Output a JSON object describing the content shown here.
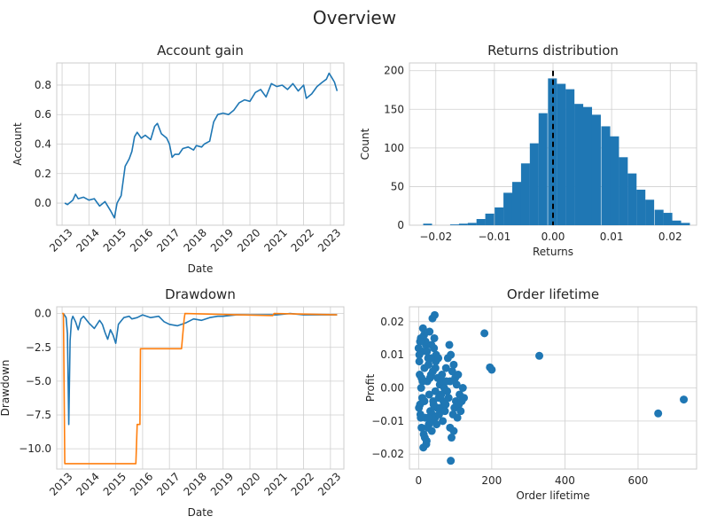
{
  "figure": {
    "title": "Overview"
  },
  "colors": {
    "blue": "#1f77b4",
    "orange": "#ff7f0e",
    "black": "#000000"
  },
  "chart_data": [
    {
      "type": "line",
      "title": "Account gain",
      "xlabel": "Date",
      "ylabel": "Account",
      "xlim": [
        2012.8,
        2023.5
      ],
      "ylim": [
        -0.15,
        0.95
      ],
      "xticks": [
        "2013",
        "2014",
        "2015",
        "2016",
        "2017",
        "2018",
        "2019",
        "2020",
        "2021",
        "2022",
        "2023"
      ],
      "yticks": [
        "0.0",
        "0.2",
        "0.4",
        "0.6",
        "0.8"
      ],
      "grid": true,
      "series": [
        {
          "x": [
            2013.1,
            2013.2,
            2013.4,
            2013.5,
            2013.6,
            2013.8,
            2014.0,
            2014.2,
            2014.4,
            2014.6,
            2014.8,
            2014.95,
            2015.05,
            2015.2,
            2015.35,
            2015.5,
            2015.6,
            2015.7,
            2015.8,
            2015.95,
            2016.1,
            2016.3,
            2016.45,
            2016.55,
            2016.7,
            2016.9,
            2017.0,
            2017.1,
            2017.2,
            2017.35,
            2017.5,
            2017.7,
            2017.9,
            2018.0,
            2018.2,
            2018.3,
            2018.5,
            2018.65,
            2018.8,
            2019.0,
            2019.2,
            2019.4,
            2019.6,
            2019.8,
            2020.0,
            2020.2,
            2020.4,
            2020.6,
            2020.8,
            2021.0,
            2021.2,
            2021.4,
            2021.6,
            2021.8,
            2022.0,
            2022.1,
            2022.3,
            2022.5,
            2022.7,
            2022.85,
            2022.95,
            2023.05,
            2023.15,
            2023.25
          ],
          "y": [
            0.0,
            -0.01,
            0.02,
            0.06,
            0.03,
            0.04,
            0.02,
            0.03,
            -0.02,
            0.01,
            -0.05,
            -0.1,
            0.0,
            0.05,
            0.25,
            0.3,
            0.35,
            0.45,
            0.48,
            0.44,
            0.46,
            0.43,
            0.52,
            0.54,
            0.47,
            0.44,
            0.4,
            0.31,
            0.33,
            0.33,
            0.37,
            0.38,
            0.36,
            0.39,
            0.38,
            0.4,
            0.42,
            0.55,
            0.6,
            0.61,
            0.6,
            0.63,
            0.68,
            0.7,
            0.69,
            0.75,
            0.77,
            0.72,
            0.81,
            0.79,
            0.8,
            0.77,
            0.81,
            0.76,
            0.8,
            0.71,
            0.74,
            0.79,
            0.82,
            0.84,
            0.88,
            0.85,
            0.82,
            0.76
          ]
        }
      ]
    },
    {
      "type": "bar",
      "title": "Returns distribution",
      "xlabel": "Returns",
      "ylabel": "Count",
      "xlim": [
        -0.0245,
        0.0245
      ],
      "ylim": [
        0,
        210
      ],
      "xticks": [
        "−0.02",
        "−0.01",
        "0.00",
        "0.01",
        "0.02"
      ],
      "yticks": [
        "0",
        "50",
        "100",
        "150",
        "200"
      ],
      "grid": true,
      "bin_width": 0.001515,
      "bins": [
        -0.0229,
        -0.0214,
        -0.0199,
        -0.0183,
        -0.0168,
        -0.0153,
        -0.0138,
        -0.0123,
        -0.0108,
        -0.0092,
        -0.0077,
        -0.0062,
        -0.0047,
        -0.0032,
        -0.0017,
        -0.0001,
        0.0014,
        0.0029,
        0.0044,
        0.0059,
        0.0074,
        0.009,
        0.0105,
        0.012,
        0.0135,
        0.015,
        0.0165,
        0.0181,
        0.0196,
        0.0211,
        0.0226
      ],
      "values": [
        0,
        2,
        0,
        0,
        1,
        2,
        3,
        8,
        15,
        23,
        42,
        56,
        80,
        106,
        145,
        190,
        183,
        176,
        157,
        153,
        143,
        128,
        115,
        88,
        67,
        46,
        33,
        20,
        16,
        6,
        3
      ],
      "mean_line": {
        "x": 0.0,
        "style": "dashed"
      }
    },
    {
      "type": "line",
      "title": "Drawdown",
      "xlabel": "Date",
      "ylabel": "Drawdown",
      "xlim": [
        2012.8,
        2023.5
      ],
      "ylim": [
        -11.5,
        0.5
      ],
      "xticks": [
        "2013",
        "2014",
        "2015",
        "2016",
        "2017",
        "2018",
        "2019",
        "2020",
        "2021",
        "2022",
        "2023"
      ],
      "yticks": [
        "0.0",
        "−2.5",
        "−5.0",
        "−7.5",
        "−10.0"
      ],
      "grid": true,
      "series": [
        {
          "color": "blue",
          "x": [
            2013.05,
            2013.15,
            2013.2,
            2013.25,
            2013.3,
            2013.35,
            2013.4,
            2013.5,
            2013.6,
            2013.7,
            2013.8,
            2014.0,
            2014.2,
            2014.4,
            2014.5,
            2014.6,
            2014.7,
            2014.8,
            2014.9,
            2015.0,
            2015.1,
            2015.3,
            2015.5,
            2015.6,
            2015.8,
            2016.0,
            2016.3,
            2016.6,
            2016.8,
            2017.0,
            2017.3,
            2017.6,
            2017.9,
            2018.2,
            2018.5,
            2018.8,
            2019.0,
            2019.5,
            2020.0,
            2020.5,
            2021.0,
            2021.5,
            2022.0,
            2022.5,
            2023.0,
            2023.25
          ],
          "y": [
            0.0,
            -0.3,
            -1.5,
            -8.2,
            -2.0,
            -0.5,
            -0.2,
            -0.6,
            -1.2,
            -0.4,
            -0.2,
            -0.7,
            -1.1,
            -0.5,
            -0.8,
            -1.4,
            -1.9,
            -1.2,
            -1.6,
            -2.2,
            -0.8,
            -0.3,
            -0.2,
            -0.4,
            -0.3,
            -0.1,
            -0.3,
            -0.2,
            -0.6,
            -0.8,
            -0.9,
            -0.7,
            -0.4,
            -0.5,
            -0.3,
            -0.2,
            -0.2,
            -0.1,
            -0.1,
            -0.1,
            -0.1,
            0.0,
            -0.1,
            -0.1,
            -0.1,
            -0.1
          ]
        },
        {
          "color": "orange",
          "x": [
            2013.0,
            2013.05,
            2013.1,
            2013.12,
            2013.15,
            2015.75,
            2015.8,
            2015.9,
            2015.92,
            2017.3,
            2017.45,
            2017.55,
            2017.58,
            2020.85,
            2020.9,
            2023.25
          ],
          "y": [
            0.0,
            0.0,
            -11.1,
            -11.1,
            -11.1,
            -11.1,
            -8.2,
            -8.2,
            -2.6,
            -2.6,
            -2.6,
            -0.4,
            0.0,
            -0.15,
            0.0,
            -0.1
          ]
        }
      ]
    },
    {
      "type": "scatter",
      "title": "Order lifetime",
      "xlabel": "Order lifetime",
      "ylabel": "Profit",
      "xlim": [
        -25,
        760
      ],
      "ylim": [
        -0.0245,
        0.0245
      ],
      "xticks": [
        "0",
        "200",
        "400",
        "600"
      ],
      "yticks": [
        "0.02",
        "0.01",
        "0.00",
        "−0.01",
        "−0.02"
      ],
      "grid": true,
      "points": [
        [
          0,
          0.012
        ],
        [
          2,
          0.008
        ],
        [
          4,
          -0.005
        ],
        [
          6,
          0.015
        ],
        [
          8,
          -0.012
        ],
        [
          3,
          0.004
        ],
        [
          5,
          -0.008
        ],
        [
          7,
          0.0
        ],
        [
          9,
          0.011
        ],
        [
          10,
          -0.003
        ],
        [
          12,
          0.018
        ],
        [
          14,
          -0.014
        ],
        [
          16,
          0.006
        ],
        [
          18,
          -0.009
        ],
        [
          20,
          0.013
        ],
        [
          22,
          -0.016
        ],
        [
          24,
          0.002
        ],
        [
          26,
          0.009
        ],
        [
          28,
          -0.011
        ],
        [
          30,
          0.017
        ],
        [
          32,
          -0.007
        ],
        [
          34,
          0.004
        ],
        [
          36,
          -0.013
        ],
        [
          38,
          0.021
        ],
        [
          40,
          -0.004
        ],
        [
          42,
          0.012
        ],
        [
          44,
          0.022
        ],
        [
          46,
          -0.001
        ],
        [
          48,
          0.01
        ],
        [
          50,
          -0.006
        ],
        [
          13,
          -0.018
        ],
        [
          15,
          0.016
        ],
        [
          17,
          -0.015
        ],
        [
          19,
          0.014
        ],
        [
          21,
          -0.017
        ],
        [
          23,
          0.011
        ],
        [
          25,
          -0.012
        ],
        [
          27,
          0.007
        ],
        [
          29,
          -0.002
        ],
        [
          31,
          0.003
        ],
        [
          11,
          0.002
        ],
        [
          33,
          -0.01
        ],
        [
          35,
          0.013
        ],
        [
          37,
          -0.008
        ],
        [
          39,
          0.005
        ],
        [
          41,
          -0.005
        ],
        [
          43,
          0.015
        ],
        [
          45,
          -0.009
        ],
        [
          47,
          0.008
        ],
        [
          49,
          -0.011
        ],
        [
          52,
          0.003
        ],
        [
          55,
          -0.003
        ],
        [
          58,
          0.001
        ],
        [
          60,
          -0.006
        ],
        [
          62,
          -0.002
        ],
        [
          65,
          0.002
        ],
        [
          68,
          -0.004
        ],
        [
          70,
          0.0
        ],
        [
          72,
          -0.007
        ],
        [
          75,
          0.006
        ],
        [
          78,
          -0.001
        ],
        [
          80,
          0.009
        ],
        [
          82,
          -0.003
        ],
        [
          84,
          0.013
        ],
        [
          86,
          -0.012
        ],
        [
          88,
          0.01
        ],
        [
          90,
          -0.015
        ],
        [
          92,
          0.005
        ],
        [
          94,
          -0.008
        ],
        [
          96,
          0.007
        ],
        [
          98,
          -0.006
        ],
        [
          100,
          0.003
        ],
        [
          102,
          -0.004
        ],
        [
          104,
          0.001
        ],
        [
          106,
          -0.009
        ],
        [
          108,
          0.004
        ],
        [
          110,
          -0.005
        ],
        [
          112,
          -0.002
        ],
        [
          115,
          -0.007
        ],
        [
          118,
          -0.004
        ],
        [
          121,
          0.0
        ],
        [
          124,
          -0.003
        ],
        [
          1,
          -0.006
        ],
        [
          2,
          0.01
        ],
        [
          4,
          0.014
        ],
        [
          6,
          -0.009
        ],
        [
          8,
          0.003
        ],
        [
          16,
          -0.004
        ],
        [
          26,
          -0.009
        ],
        [
          36,
          0.009
        ],
        [
          46,
          0.006
        ],
        [
          56,
          -0.008
        ],
        [
          64,
          0.004
        ],
        [
          74,
          -0.005
        ],
        [
          86,
          0.002
        ],
        [
          96,
          -0.013
        ],
        [
          88,
          -0.022
        ],
        [
          54,
          0.009
        ],
        [
          66,
          -0.01
        ],
        [
          76,
          0.002
        ],
        [
          180,
          0.0165
        ],
        [
          195,
          0.0062
        ],
        [
          200,
          0.0055
        ],
        [
          330,
          0.0097
        ],
        [
          655,
          -0.0077
        ],
        [
          725,
          -0.0035
        ]
      ]
    }
  ]
}
